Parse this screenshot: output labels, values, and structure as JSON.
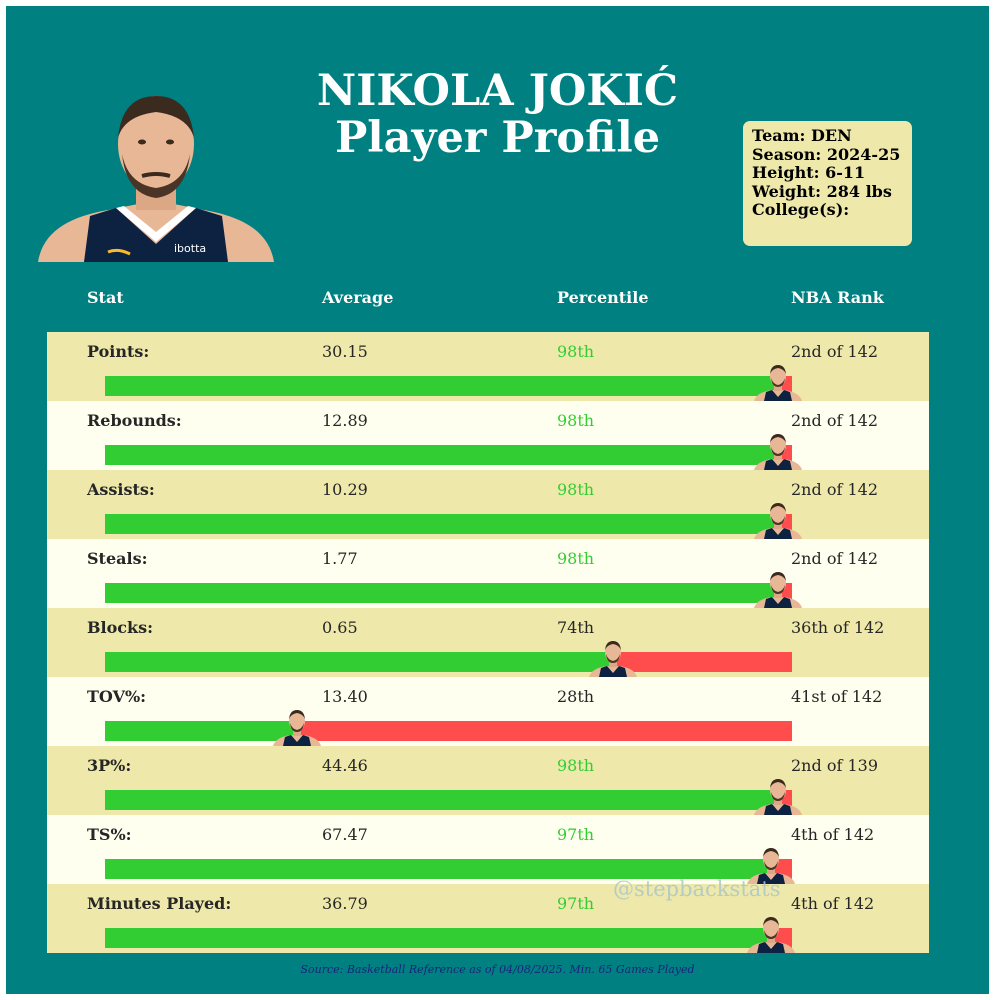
{
  "colors": {
    "frame": "#008080",
    "row_odd": "#eee8aa",
    "row_even": "#fffff0",
    "good": "#32cd32",
    "bad": "#ff4c4c",
    "infobox": "#eee8aa"
  },
  "title": {
    "line1": "NIKOLA JOKIĆ",
    "line2": "Player Profile"
  },
  "info": {
    "team": "Team: DEN",
    "season": "Season: 2024-25",
    "height": "Height: 6-11",
    "weight": "Weight: 284 lbs",
    "college": "College(s):"
  },
  "headshot_icon": "player-headshot-icon",
  "chart_data": {
    "type": "table",
    "columns": [
      "Stat",
      "Average",
      "Percentile",
      "NBA Rank"
    ],
    "rows": [
      {
        "stat": "Points:",
        "average": "30.15",
        "percentile_label": "98th",
        "percentile": 98,
        "rank": "2nd of 142",
        "highlight": true
      },
      {
        "stat": "Rebounds:",
        "average": "12.89",
        "percentile_label": "98th",
        "percentile": 98,
        "rank": "2nd of 142",
        "highlight": true
      },
      {
        "stat": "Assists:",
        "average": "10.29",
        "percentile_label": "98th",
        "percentile": 98,
        "rank": "2nd of 142",
        "highlight": true
      },
      {
        "stat": "Steals:",
        "average": "1.77",
        "percentile_label": "98th",
        "percentile": 98,
        "rank": "2nd of 142",
        "highlight": true
      },
      {
        "stat": "Blocks:",
        "average": "0.65",
        "percentile_label": "74th",
        "percentile": 74,
        "rank": "36th of 142",
        "highlight": false
      },
      {
        "stat": "TOV%:",
        "average": "13.40",
        "percentile_label": "28th",
        "percentile": 28,
        "rank": "41st of 142",
        "highlight": false
      },
      {
        "stat": "3P%:",
        "average": "44.46",
        "percentile_label": "98th",
        "percentile": 98,
        "rank": "2nd of 139",
        "highlight": true
      },
      {
        "stat": "TS%:",
        "average": "67.47",
        "percentile_label": "97th",
        "percentile": 97,
        "rank": "4th of 142",
        "highlight": true
      },
      {
        "stat": "Minutes Played:",
        "average": "36.79",
        "percentile_label": "97th",
        "percentile": 97,
        "rank": "4th of 142",
        "highlight": true
      }
    ]
  },
  "watermark": "@stepbackstats",
  "source": "Source: Basketball Reference as of 04/08/2025. Min. 65 Games Played"
}
